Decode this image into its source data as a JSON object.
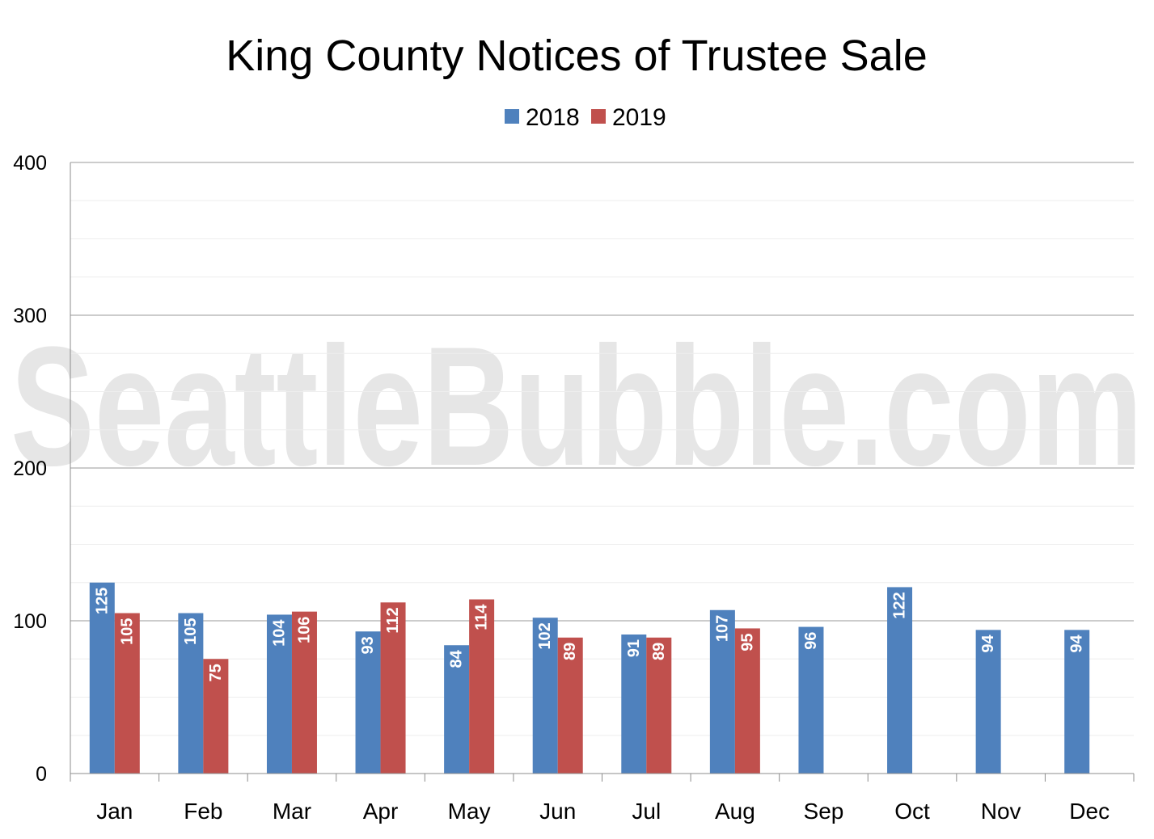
{
  "watermark": "SeattleBubble.com",
  "chart_data": {
    "type": "bar",
    "title": "King County Notices of Trustee Sale",
    "categories": [
      "Jan",
      "Feb",
      "Mar",
      "Apr",
      "May",
      "Jun",
      "Jul",
      "Aug",
      "Sep",
      "Oct",
      "Nov",
      "Dec"
    ],
    "series": [
      {
        "name": "2018",
        "color": "#4f81bd",
        "values": [
          125,
          105,
          104,
          93,
          84,
          102,
          91,
          107,
          96,
          122,
          94,
          94
        ]
      },
      {
        "name": "2019",
        "color": "#c0504d",
        "values": [
          105,
          75,
          106,
          112,
          114,
          89,
          89,
          95,
          null,
          null,
          null,
          null
        ]
      }
    ],
    "ylim": [
      0,
      400
    ],
    "yticks": [
      0,
      100,
      200,
      300,
      400
    ],
    "grid": true,
    "legend_position": "top-center",
    "data_labels": true
  }
}
